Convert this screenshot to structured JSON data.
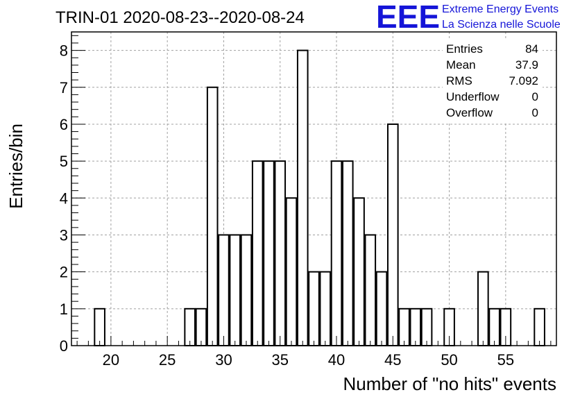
{
  "chart_data": {
    "type": "bar",
    "title": "TRIN-01 2020-08-23--2020-08-24",
    "xlabel": "Number of \"no hits\" events",
    "ylabel": "Entries/bin",
    "xlim": [
      16.5,
      59.5
    ],
    "ylim": [
      0,
      8.5
    ],
    "bin_width": 0.9,
    "x_ticks": [
      20,
      25,
      30,
      35,
      40,
      45,
      50,
      55
    ],
    "y_ticks": [
      0,
      1,
      2,
      3,
      4,
      5,
      6,
      7,
      8
    ],
    "grid": true,
    "bins": [
      {
        "x": 19,
        "count": 1
      },
      {
        "x": 27,
        "count": 1
      },
      {
        "x": 28,
        "count": 1
      },
      {
        "x": 29,
        "count": 7
      },
      {
        "x": 30,
        "count": 3
      },
      {
        "x": 31,
        "count": 3
      },
      {
        "x": 32,
        "count": 3
      },
      {
        "x": 33,
        "count": 5
      },
      {
        "x": 34,
        "count": 5
      },
      {
        "x": 35,
        "count": 5
      },
      {
        "x": 36,
        "count": 4
      },
      {
        "x": 37,
        "count": 8
      },
      {
        "x": 38,
        "count": 2
      },
      {
        "x": 39,
        "count": 2
      },
      {
        "x": 40,
        "count": 5
      },
      {
        "x": 41,
        "count": 5
      },
      {
        "x": 42,
        "count": 4
      },
      {
        "x": 43,
        "count": 3
      },
      {
        "x": 44,
        "count": 2
      },
      {
        "x": 45,
        "count": 6
      },
      {
        "x": 46,
        "count": 1
      },
      {
        "x": 47,
        "count": 1
      },
      {
        "x": 48,
        "count": 1
      },
      {
        "x": 50,
        "count": 1
      },
      {
        "x": 53,
        "count": 2
      },
      {
        "x": 54,
        "count": 1
      },
      {
        "x": 55,
        "count": 1
      },
      {
        "x": 58,
        "count": 1
      }
    ],
    "stats": [
      {
        "label": "Entries",
        "value": "84"
      },
      {
        "label": "Mean",
        "value": "37.9"
      },
      {
        "label": "RMS",
        "value": "7.092"
      },
      {
        "label": "Underflow",
        "value": "0"
      },
      {
        "label": "Overflow",
        "value": "0"
      }
    ]
  },
  "logo": {
    "text": "EEE",
    "line1": "Extreme Energy Events",
    "line2": "La Scienza nelle Scuole",
    "color": "#1515d8"
  },
  "colors": {
    "bar_outline": "#000000",
    "grid": "#a0a0a0",
    "axis": "#000000"
  }
}
